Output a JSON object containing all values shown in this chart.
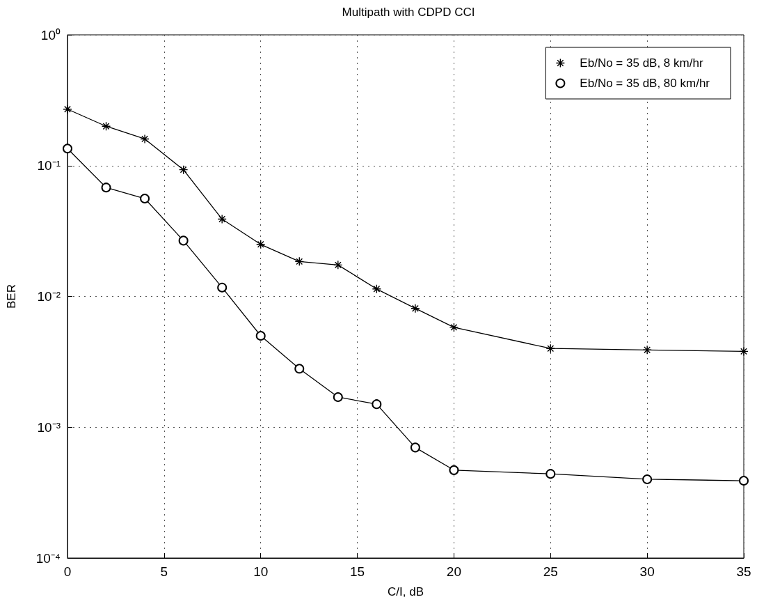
{
  "chart_data": {
    "type": "line",
    "title": "Multipath with CDPD CCI",
    "xlabel": "C/I, dB",
    "ylabel": "BER",
    "log": "y",
    "grid": true,
    "legend": "top right",
    "line_style": "solid",
    "xlim": [
      0,
      35
    ],
    "xticks": [
      0,
      5,
      10,
      15,
      20,
      25,
      30,
      35
    ],
    "ylim": [
      0.0001,
      1
    ],
    "yticks": [
      {
        "value": 0.0001,
        "label": "10⁻⁴"
      },
      {
        "value": 0.001,
        "label": "10⁻³"
      },
      {
        "value": 0.01,
        "label": "10⁻²"
      },
      {
        "value": 0.1,
        "label": "10⁻¹"
      },
      {
        "value": 1,
        "label": "10⁰"
      }
    ],
    "x": [
      0,
      2,
      4,
      6,
      8,
      10,
      12,
      14,
      16,
      18,
      20,
      25,
      30,
      35
    ],
    "series": [
      {
        "name": "Eb/No = 35 dB, 8 km/hr",
        "color": "#000000",
        "marker": "cross",
        "values": [
          0.27,
          0.2,
          0.16,
          0.093,
          0.039,
          0.025,
          0.0185,
          0.0174,
          0.0114,
          0.0081,
          0.0058,
          0.004,
          0.0039,
          0.0038
        ]
      },
      {
        "name": "Eb/No = 35 dB, 80 km/hr",
        "color": "#000000",
        "marker": "circle",
        "values": [
          0.135,
          0.068,
          0.056,
          0.0267,
          0.0117,
          0.005,
          0.0028,
          0.0017,
          0.0015,
          0.0007,
          0.00047,
          0.00044,
          0.0004,
          0.00039
        ]
      }
    ]
  }
}
